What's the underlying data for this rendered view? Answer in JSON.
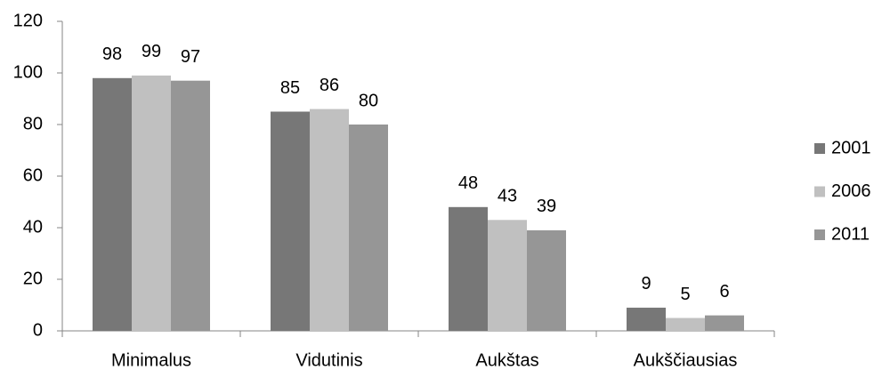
{
  "chart_data": {
    "type": "bar",
    "categories": [
      "Minimalus",
      "Vidutinis",
      "Aukštas",
      "Aukščiausias"
    ],
    "series": [
      {
        "name": "2001",
        "color": "#777777",
        "values": [
          98,
          85,
          48,
          9
        ]
      },
      {
        "name": "2006",
        "color": "#c0c0c0",
        "values": [
          99,
          86,
          43,
          5
        ]
      },
      {
        "name": "2011",
        "color": "#969696",
        "values": [
          97,
          80,
          39,
          6
        ]
      }
    ],
    "ylim": [
      0,
      120
    ],
    "yticks": [
      0,
      20,
      40,
      60,
      80,
      100,
      120
    ],
    "grid": false,
    "legend": "right",
    "data_labels": true
  }
}
